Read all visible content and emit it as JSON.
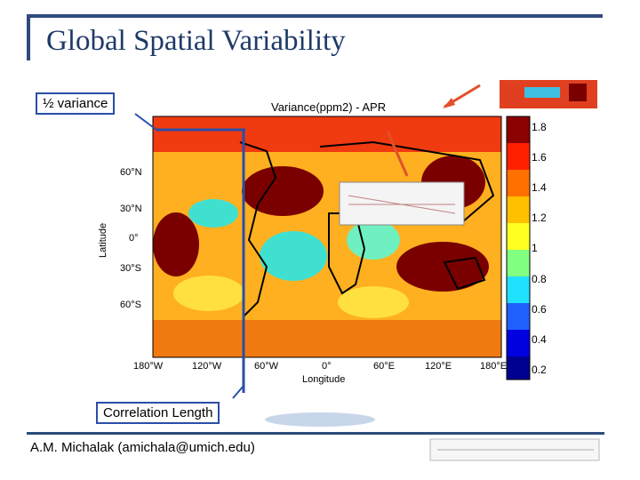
{
  "slide": {
    "title": "Global Spatial Variability",
    "footer": "A.M. Michalak (amichala@umich.edu)"
  },
  "callouts": {
    "half_variance": "½ variance",
    "correlation_length": "Correlation Length"
  },
  "map": {
    "title": "Variance(ppm2) - APR",
    "y_axis_label": "Latitude",
    "x_axis_label": "Longitude",
    "lat_ticks": [
      "60°N",
      "30°N",
      "0°",
      "30°S",
      "60°S"
    ],
    "lon_ticks": [
      "180°W",
      "120°W",
      "60°W",
      "0°",
      "60°E",
      "120°E",
      "180°E"
    ]
  },
  "colorbar": {
    "ticks": [
      "1.8",
      "1.6",
      "1.4",
      "1.2",
      "1",
      "0.8",
      "0.6",
      "0.4",
      "0.2"
    ],
    "colors": [
      "#00008f",
      "#0000ff",
      "#0080ff",
      "#00ffff",
      "#80ff80",
      "#ffff00",
      "#ff8000",
      "#ff0000",
      "#800000"
    ]
  },
  "colors": {
    "accent_blue": "#2a4ea8",
    "title_blue": "#1f3a68",
    "arrow_red": "#e2502a"
  }
}
